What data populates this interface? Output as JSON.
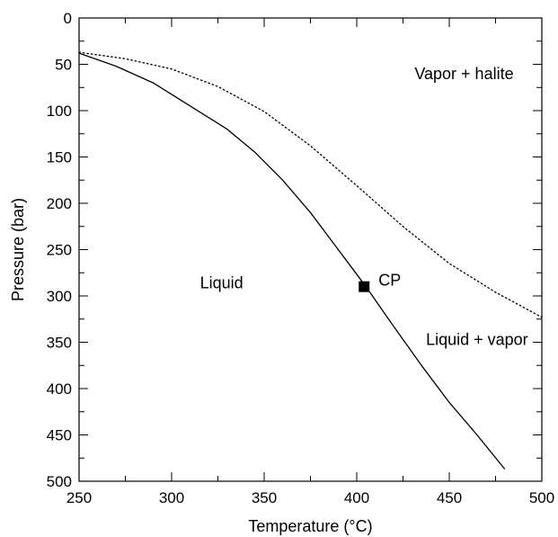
{
  "chart_data": {
    "type": "line",
    "title": "",
    "xlabel": "Temperature (°C)",
    "ylabel": "Pressure (bar)",
    "xlim": [
      250,
      500
    ],
    "ylim": [
      0,
      500
    ],
    "y_inverted": true,
    "x_ticks": [
      250,
      300,
      350,
      400,
      450,
      500
    ],
    "y_ticks": [
      0,
      50,
      100,
      150,
      200,
      250,
      300,
      350,
      400,
      450,
      500
    ],
    "grid": false,
    "legend": "none",
    "series": [
      {
        "style": "solid",
        "color": "#000000",
        "points": [
          [
            250,
            38
          ],
          [
            270,
            52
          ],
          [
            290,
            70
          ],
          [
            310,
            95
          ],
          [
            330,
            120
          ],
          [
            345,
            145
          ],
          [
            360,
            175
          ],
          [
            375,
            210
          ],
          [
            390,
            250
          ],
          [
            405,
            290
          ],
          [
            420,
            333
          ],
          [
            435,
            375
          ],
          [
            450,
            415
          ],
          [
            465,
            450
          ],
          [
            480,
            487
          ]
        ]
      },
      {
        "style": "dotted",
        "color": "#000000",
        "points": [
          [
            250,
            37
          ],
          [
            275,
            44
          ],
          [
            300,
            55
          ],
          [
            325,
            74
          ],
          [
            350,
            101
          ],
          [
            375,
            138
          ],
          [
            400,
            181
          ],
          [
            425,
            225
          ],
          [
            450,
            265
          ],
          [
            475,
            296
          ],
          [
            500,
            323
          ]
        ]
      }
    ],
    "markers": [
      {
        "x": 404,
        "y": 290,
        "shape": "square",
        "label": "CP"
      }
    ],
    "annotations": [
      {
        "text": "Vapor + halite",
        "x": 458,
        "y": 60
      },
      {
        "text": "Liquid",
        "x": 327,
        "y": 286
      },
      {
        "text": "Liquid + vapor",
        "x": 465,
        "y": 347
      }
    ]
  }
}
